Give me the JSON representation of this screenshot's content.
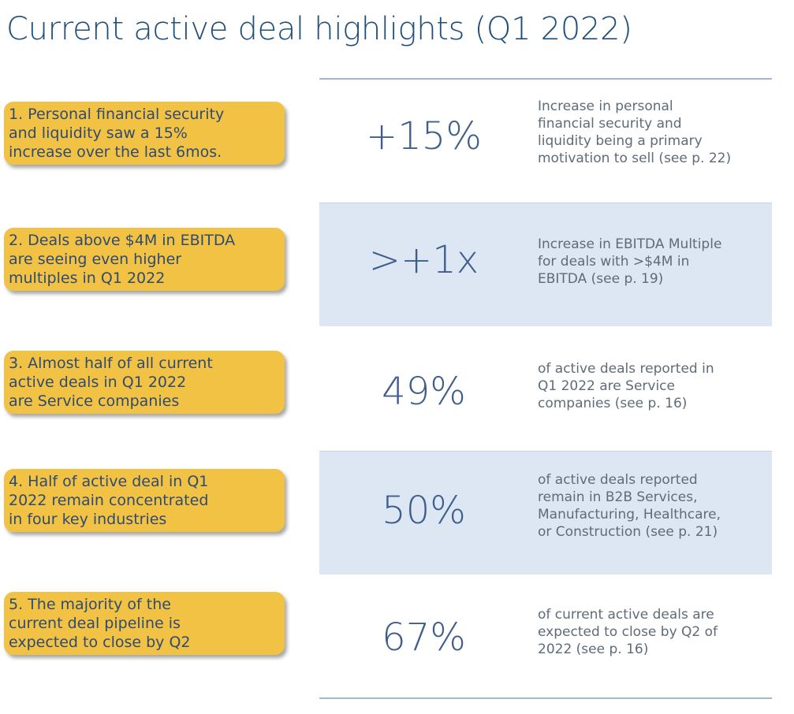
{
  "title": "Current active deal highlights (Q1 2022)",
  "rows": [
    {
      "callout": "1. Personal financial security\n    and liquidity saw a 15%\n    increase over the last 6mos.",
      "metric": "+15%",
      "description": "Increase in personal\nfinancial security and\nliquidity being a primary\nmotivation to sell (see p. 22)",
      "shaded": false
    },
    {
      "callout": " 2. Deals above $4M in EBITDA\n     are seeing even higher\n     multiples in Q1 2022",
      "metric": ">+1x",
      "description": "Increase in EBITDA Multiple\nfor deals with >$4M in\nEBITDA (see p. 19)",
      "shaded": true
    },
    {
      "callout": "3. Almost half of all current\n    active deals in Q1 2022\n    are Service companies",
      "metric": "49%",
      "description": "of active deals reported in\nQ1 2022 are Service\ncompanies (see p. 16)",
      "shaded": false
    },
    {
      "callout": "4. Half of active deal in Q1\n    2022 remain concentrated\n    in four key industries",
      "metric": "50%",
      "description": "of active deals reported\nremain in B2B Services,\nManufacturing, Healthcare,\nor Construction (see p. 21)",
      "shaded": true
    },
    {
      "callout": "5. The majority of the\n    current deal pipeline is\n    expected to close by Q2",
      "metric": "67%",
      "description": "of current active deals are\nexpected to close by Q2 of\n2022 (see p. 16)",
      "shaded": false
    }
  ],
  "colors": {
    "title": "#1f4e79",
    "callout_fill": "#f2c244",
    "band": "#dde7f4",
    "metric": "#3e5d8c",
    "rule": "#9db9d9"
  }
}
